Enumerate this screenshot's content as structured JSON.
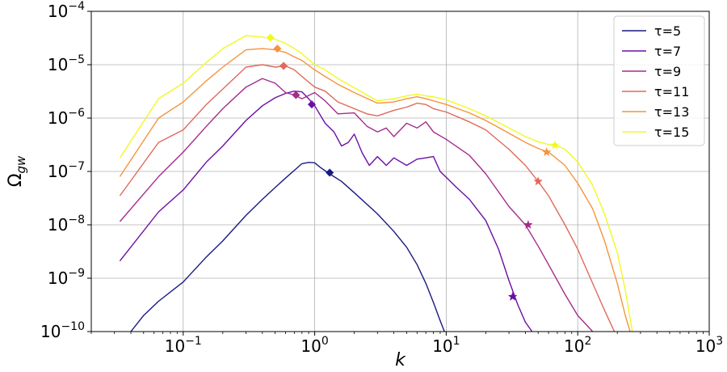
{
  "chart_data": {
    "type": "line",
    "xscale": "log",
    "yscale": "log",
    "xlim": [
      0.02,
      1000
    ],
    "ylim": [
      1e-10,
      0.0001
    ],
    "grid": true,
    "legend_position": "top-right",
    "xlabel": "k",
    "ylabel": "Ω_gw",
    "ylabel_main": "Ω",
    "ylabel_sub": "gw",
    "x_ticks": [
      {
        "value": 0.1,
        "base": "10",
        "exp": "−1"
      },
      {
        "value": 1,
        "base": "10",
        "exp": "0"
      },
      {
        "value": 10,
        "base": "10",
        "exp": "1"
      },
      {
        "value": 100,
        "base": "10",
        "exp": "2"
      },
      {
        "value": 1000,
        "base": "10",
        "exp": "3"
      }
    ],
    "y_ticks": [
      {
        "value": 1e-10,
        "base": "10",
        "exp": "−10"
      },
      {
        "value": 1e-09,
        "base": "10",
        "exp": "−9"
      },
      {
        "value": 1e-08,
        "base": "10",
        "exp": "−8"
      },
      {
        "value": 1e-07,
        "base": "10",
        "exp": "−7"
      },
      {
        "value": 1e-06,
        "base": "10",
        "exp": "−6"
      },
      {
        "value": 1e-05,
        "base": "10",
        "exp": "−5"
      },
      {
        "value": 0.0001,
        "base": "10",
        "exp": "−4"
      }
    ],
    "series": [
      {
        "name": "τ=5",
        "color": "#1a1a80",
        "points": [
          [
            0.04,
            1e-10
          ],
          [
            0.05,
            2e-10
          ],
          [
            0.065,
            3.7e-10
          ],
          [
            0.1,
            8.5e-10
          ],
          [
            0.15,
            2.5e-09
          ],
          [
            0.2,
            5e-09
          ],
          [
            0.3,
            1.5e-08
          ],
          [
            0.4,
            3e-08
          ],
          [
            0.5,
            5e-08
          ],
          [
            0.6,
            7.5e-08
          ],
          [
            0.7,
            1.05e-07
          ],
          [
            0.8,
            1.4e-07
          ],
          [
            0.9,
            1.48e-07
          ],
          [
            1.0,
            1.45e-07
          ],
          [
            1.1,
            1.2e-07
          ],
          [
            1.3,
            9e-08
          ],
          [
            1.6,
            6.5e-08
          ],
          [
            2.0,
            4e-08
          ],
          [
            3.0,
            1.6e-08
          ],
          [
            4.0,
            7.5e-09
          ],
          [
            5.0,
            3.8e-09
          ],
          [
            6.0,
            1.8e-09
          ],
          [
            7.0,
            8e-10
          ],
          [
            8.0,
            3.5e-10
          ],
          [
            9.0,
            1.6e-10
          ],
          [
            9.7,
            1e-10
          ]
        ],
        "marker": {
          "x": 1.3,
          "y": 9.5e-08,
          "shape": "diamond"
        }
      },
      {
        "name": "τ=7",
        "color": "#6b0fa6",
        "points": [
          [
            0.033,
            2.1e-09
          ],
          [
            0.065,
            1.75e-08
          ],
          [
            0.1,
            4.5e-08
          ],
          [
            0.15,
            1.5e-07
          ],
          [
            0.2,
            3e-07
          ],
          [
            0.3,
            9e-07
          ],
          [
            0.4,
            1.7e-06
          ],
          [
            0.5,
            2.4e-06
          ],
          [
            0.6,
            2.9e-06
          ],
          [
            0.7,
            3.2e-06
          ],
          [
            0.8,
            3.1e-06
          ],
          [
            0.9,
            2.3e-06
          ],
          [
            1.0,
            1.7e-06
          ],
          [
            1.2,
            8e-07
          ],
          [
            1.4,
            5.5e-07
          ],
          [
            1.6,
            3e-07
          ],
          [
            1.8,
            3.5e-07
          ],
          [
            2.0,
            5e-07
          ],
          [
            2.3,
            2.2e-07
          ],
          [
            2.6,
            1.3e-07
          ],
          [
            3.0,
            1.9e-07
          ],
          [
            3.5,
            1.3e-07
          ],
          [
            4.0,
            1.8e-07
          ],
          [
            5.0,
            1.3e-07
          ],
          [
            6.0,
            1.7e-07
          ],
          [
            7.0,
            1.8e-07
          ],
          [
            8.0,
            1.9e-07
          ],
          [
            9.0,
            1e-07
          ],
          [
            12.0,
            5e-08
          ],
          [
            15.0,
            3e-08
          ],
          [
            20.0,
            1.2e-08
          ],
          [
            25.0,
            3.5e-09
          ],
          [
            30.0,
            9e-10
          ],
          [
            35.0,
            3.2e-10
          ],
          [
            40.0,
            1.5e-10
          ],
          [
            45.0,
            1e-10
          ]
        ],
        "marker": {
          "x": 32,
          "y": 4.5e-10,
          "shape": "star"
        }
      },
      {
        "name": "τ=9",
        "color": "#a52c8a",
        "points": [
          [
            0.033,
            1.15e-08
          ],
          [
            0.065,
            8e-08
          ],
          [
            0.1,
            2.3e-07
          ],
          [
            0.15,
            7e-07
          ],
          [
            0.2,
            1.5e-06
          ],
          [
            0.3,
            3.8e-06
          ],
          [
            0.4,
            5.5e-06
          ],
          [
            0.5,
            4.5e-06
          ],
          [
            0.6,
            3e-06
          ],
          [
            0.7,
            2.7e-06
          ],
          [
            0.8,
            2.3e-06
          ],
          [
            1.0,
            3e-06
          ],
          [
            1.2,
            2.1e-06
          ],
          [
            1.5,
            1.2e-06
          ],
          [
            2.0,
            1.25e-06
          ],
          [
            2.5,
            7e-07
          ],
          [
            3.0,
            5.5e-07
          ],
          [
            3.5,
            6.5e-07
          ],
          [
            4.0,
            4.5e-07
          ],
          [
            5.0,
            8e-07
          ],
          [
            6.0,
            6.5e-07
          ],
          [
            7.0,
            8.5e-07
          ],
          [
            8.0,
            5.5e-07
          ],
          [
            10.0,
            4e-07
          ],
          [
            15.0,
            2e-07
          ],
          [
            20.0,
            9e-08
          ],
          [
            30.0,
            2.2e-08
          ],
          [
            40.0,
            1e-08
          ],
          [
            50.0,
            4e-09
          ],
          [
            60.0,
            1.8e-09
          ],
          [
            80.0,
            5e-10
          ],
          [
            100.0,
            2e-10
          ],
          [
            130.0,
            1e-10
          ]
        ],
        "marker": {
          "x": 42,
          "y": 1e-08,
          "shape": "star"
        }
      },
      {
        "name": "τ=11",
        "color": "#e0695c",
        "points": [
          [
            0.033,
            3.5e-08
          ],
          [
            0.065,
            3.5e-07
          ],
          [
            0.1,
            6e-07
          ],
          [
            0.15,
            1.8e-06
          ],
          [
            0.2,
            3.5e-06
          ],
          [
            0.3,
            9e-06
          ],
          [
            0.4,
            1e-05
          ],
          [
            0.5,
            9e-06
          ],
          [
            0.6,
            9.5e-06
          ],
          [
            0.7,
            8e-06
          ],
          [
            0.8,
            6e-06
          ],
          [
            1.0,
            3.8e-06
          ],
          [
            1.2,
            3.2e-06
          ],
          [
            1.5,
            2e-06
          ],
          [
            2.0,
            1.5e-06
          ],
          [
            2.5,
            1.2e-06
          ],
          [
            3.0,
            1.1e-06
          ],
          [
            4.0,
            1.4e-06
          ],
          [
            5.0,
            1.6e-06
          ],
          [
            6.0,
            1.9e-06
          ],
          [
            7.0,
            1.8e-06
          ],
          [
            8.0,
            1.5e-06
          ],
          [
            10.0,
            1.3e-06
          ],
          [
            15.0,
            8.5e-07
          ],
          [
            20.0,
            6e-07
          ],
          [
            30.0,
            2.6e-07
          ],
          [
            40.0,
            1.3e-07
          ],
          [
            50.0,
            6.5e-08
          ],
          [
            60.0,
            3.5e-08
          ],
          [
            80.0,
            1e-08
          ],
          [
            100.0,
            3.5e-09
          ],
          [
            130.0,
            8e-10
          ],
          [
            160.0,
            2.5e-10
          ],
          [
            190.0,
            1e-10
          ]
        ],
        "marker": {
          "x": 50,
          "y": 6.5e-08,
          "shape": "star"
        }
      },
      {
        "name": "τ=13",
        "color": "#f5943e",
        "points": [
          [
            0.033,
            8e-08
          ],
          [
            0.065,
            1e-06
          ],
          [
            0.1,
            2e-06
          ],
          [
            0.15,
            5e-06
          ],
          [
            0.2,
            9e-06
          ],
          [
            0.3,
            1.9e-05
          ],
          [
            0.4,
            2e-05
          ],
          [
            0.5,
            1.9e-05
          ],
          [
            0.6,
            1.7e-05
          ],
          [
            0.7,
            1.4e-05
          ],
          [
            0.8,
            1.2e-05
          ],
          [
            1.0,
            8e-06
          ],
          [
            1.2,
            6e-06
          ],
          [
            1.5,
            4.3e-06
          ],
          [
            2.0,
            3e-06
          ],
          [
            3.0,
            1.9e-06
          ],
          [
            4.0,
            2e-06
          ],
          [
            5.0,
            2.3e-06
          ],
          [
            6.0,
            2.5e-06
          ],
          [
            7.0,
            2.3e-06
          ],
          [
            8.0,
            2.1e-06
          ],
          [
            10.0,
            1.8e-06
          ],
          [
            15.0,
            1.25e-06
          ],
          [
            20.0,
            9e-07
          ],
          [
            30.0,
            5.2e-07
          ],
          [
            40.0,
            3.5e-07
          ],
          [
            50.0,
            2.7e-07
          ],
          [
            60.0,
            2.3e-07
          ],
          [
            80.0,
            1.3e-07
          ],
          [
            100.0,
            6e-08
          ],
          [
            130.0,
            2e-08
          ],
          [
            160.0,
            5e-09
          ],
          [
            200.0,
            8e-10
          ],
          [
            230.0,
            2e-10
          ],
          [
            250.0,
            1e-10
          ]
        ],
        "marker": {
          "x": 58,
          "y": 2.3e-07,
          "shape": "star"
        }
      },
      {
        "name": "τ=15",
        "color": "#f0f921",
        "points": [
          [
            0.033,
            1.8e-07
          ],
          [
            0.065,
            2.3e-06
          ],
          [
            0.1,
            4.5e-06
          ],
          [
            0.15,
            1.1e-05
          ],
          [
            0.2,
            2e-05
          ],
          [
            0.3,
            3.5e-05
          ],
          [
            0.4,
            3.3e-05
          ],
          [
            0.5,
            3e-05
          ],
          [
            0.6,
            2.5e-05
          ],
          [
            0.7,
            2e-05
          ],
          [
            0.8,
            1.6e-05
          ],
          [
            1.0,
            1e-05
          ],
          [
            1.2,
            8e-06
          ],
          [
            1.5,
            5.5e-06
          ],
          [
            2.0,
            3.7e-06
          ],
          [
            3.0,
            2.1e-06
          ],
          [
            4.0,
            2.3e-06
          ],
          [
            5.0,
            2.6e-06
          ],
          [
            6.0,
            2.8e-06
          ],
          [
            7.0,
            2.6e-06
          ],
          [
            8.0,
            2.5e-06
          ],
          [
            10.0,
            2.2e-06
          ],
          [
            15.0,
            1.5e-06
          ],
          [
            20.0,
            1.1e-06
          ],
          [
            30.0,
            6.5e-07
          ],
          [
            40.0,
            4.5e-07
          ],
          [
            50.0,
            3.6e-07
          ],
          [
            60.0,
            3.2e-07
          ],
          [
            70.0,
            3e-07
          ],
          [
            80.0,
            2.6e-07
          ],
          [
            100.0,
            1.5e-07
          ],
          [
            130.0,
            5.5e-08
          ],
          [
            160.0,
            1.6e-08
          ],
          [
            200.0,
            3e-09
          ],
          [
            230.0,
            6e-10
          ],
          [
            260.0,
            1e-10
          ]
        ],
        "marker": {
          "x": 67,
          "y": 3.1e-07,
          "shape": "star"
        }
      }
    ],
    "peak_markers": [
      {
        "series": "τ=15",
        "x": 0.46,
        "y": 3.2e-05,
        "color": "#f0f921"
      },
      {
        "series": "τ=13",
        "x": 0.52,
        "y": 2e-05,
        "color": "#f5943e"
      },
      {
        "series": "τ=11",
        "x": 0.58,
        "y": 9.5e-06,
        "color": "#e0695c"
      },
      {
        "series": "τ=9",
        "x": 0.72,
        "y": 2.7e-06,
        "color": "#a52c8a"
      },
      {
        "series": "τ=7",
        "x": 0.95,
        "y": 1.8e-06,
        "color": "#6b0fa6"
      }
    ]
  }
}
